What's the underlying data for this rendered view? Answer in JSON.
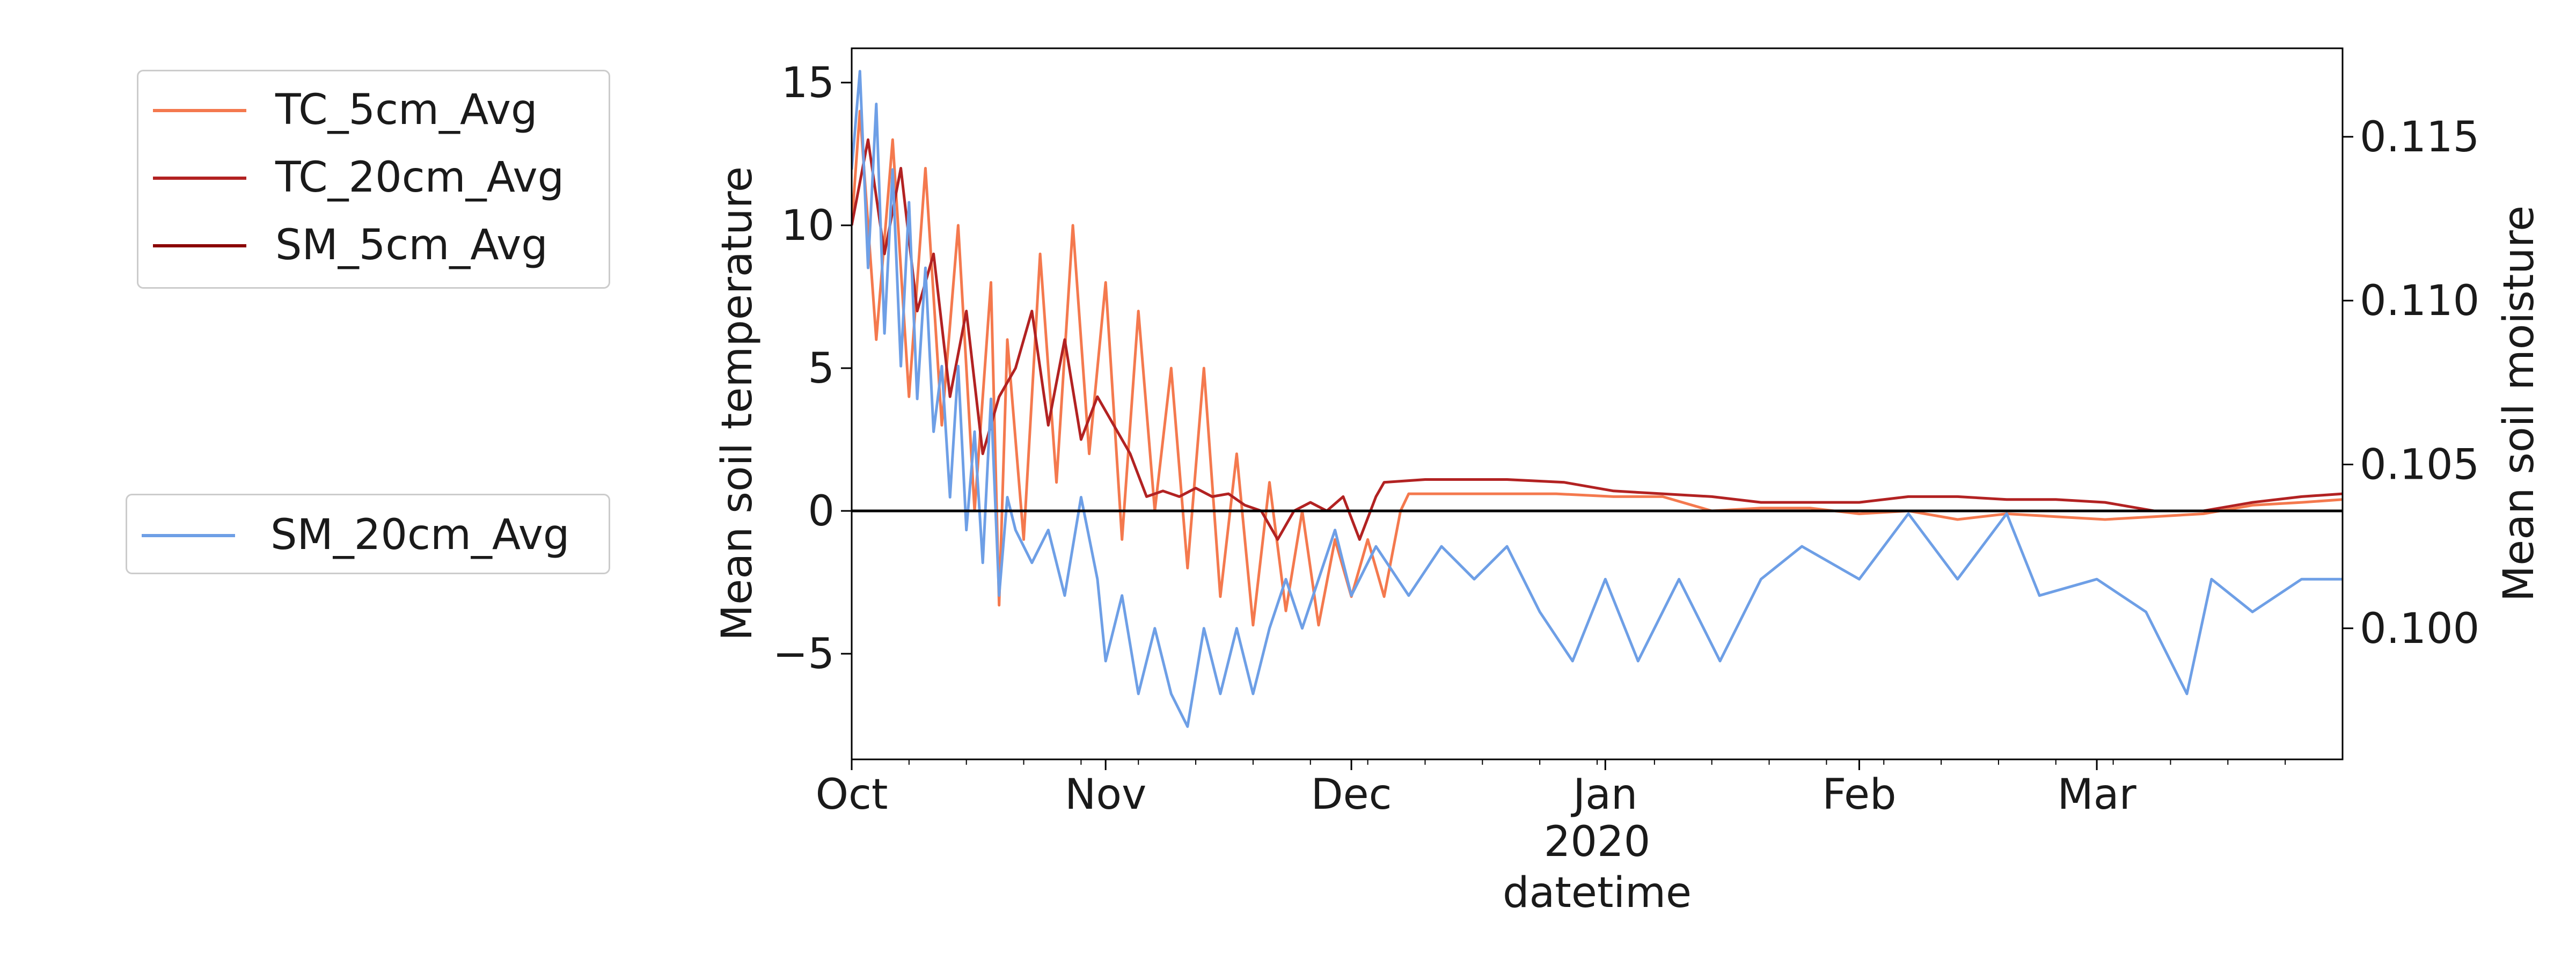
{
  "chart_data": {
    "type": "line",
    "x_axis": {
      "label": "datetime",
      "year_label": "2020",
      "range": [
        "2019-10-01",
        "2020-03-31"
      ],
      "ticks": [
        {
          "date": "2019-10-01",
          "label": "Oct"
        },
        {
          "date": "2019-11-01",
          "label": "Nov"
        },
        {
          "date": "2019-12-01",
          "label": "Dec"
        },
        {
          "date": "2020-01-01",
          "label": "Jan"
        },
        {
          "date": "2020-02-01",
          "label": "Feb"
        },
        {
          "date": "2020-03-01",
          "label": "Mar"
        }
      ]
    },
    "y_left": {
      "label": "Mean soil temperature",
      "range": [
        -8.7,
        16.2
      ],
      "ticks": [
        15,
        10,
        5,
        0,
        -5
      ],
      "tick_labels": [
        "15",
        "10",
        "5",
        "0",
        "−5"
      ]
    },
    "y_right": {
      "label": "Mean soil moisture",
      "range": [
        0.096,
        0.1177
      ],
      "ticks": [
        0.115,
        0.11,
        0.105,
        0.1
      ],
      "tick_labels": [
        "0.115",
        "0.110",
        "0.105",
        "0.100"
      ]
    },
    "reference_line": {
      "axis": "left",
      "y": 0,
      "color": "#000000"
    },
    "legend_left_top": [
      "TC_5cm_Avg",
      "TC_20cm_Avg",
      "SM_5cm_Avg"
    ],
    "legend_left_bottom": [
      "SM_20cm_Avg"
    ],
    "series": [
      {
        "name": "TC_5cm_Avg",
        "axis": "left",
        "color": "#f4794e",
        "points": [
          [
            "2019-10-01",
            10
          ],
          [
            "2019-10-02",
            14
          ],
          [
            "2019-10-04",
            6
          ],
          [
            "2019-10-06",
            13
          ],
          [
            "2019-10-08",
            4
          ],
          [
            "2019-10-10",
            12
          ],
          [
            "2019-10-12",
            3
          ],
          [
            "2019-10-14",
            10
          ],
          [
            "2019-10-16",
            0
          ],
          [
            "2019-10-18",
            8
          ],
          [
            "2019-10-19",
            -3.3
          ],
          [
            "2019-10-20",
            6
          ],
          [
            "2019-10-22",
            -1
          ],
          [
            "2019-10-24",
            9
          ],
          [
            "2019-10-26",
            1
          ],
          [
            "2019-10-28",
            10
          ],
          [
            "2019-10-30",
            2
          ],
          [
            "2019-11-01",
            8
          ],
          [
            "2019-11-03",
            -1
          ],
          [
            "2019-11-05",
            7
          ],
          [
            "2019-11-07",
            0
          ],
          [
            "2019-11-09",
            5
          ],
          [
            "2019-11-11",
            -2
          ],
          [
            "2019-11-13",
            5
          ],
          [
            "2019-11-15",
            -3
          ],
          [
            "2019-11-17",
            2
          ],
          [
            "2019-11-19",
            -4
          ],
          [
            "2019-11-21",
            1
          ],
          [
            "2019-11-23",
            -3.5
          ],
          [
            "2019-11-25",
            0
          ],
          [
            "2019-11-27",
            -4
          ],
          [
            "2019-11-29",
            -1
          ],
          [
            "2019-12-01",
            -3
          ],
          [
            "2019-12-03",
            -1
          ],
          [
            "2019-12-05",
            -3
          ],
          [
            "2019-12-07",
            0
          ],
          [
            "2019-12-08",
            0.6
          ],
          [
            "2019-12-15",
            0.6
          ],
          [
            "2019-12-20",
            0.6
          ],
          [
            "2019-12-26",
            0.6
          ],
          [
            "2020-01-02",
            0.5
          ],
          [
            "2020-01-08",
            0.5
          ],
          [
            "2020-01-14",
            0
          ],
          [
            "2020-01-20",
            0.1
          ],
          [
            "2020-01-26",
            0.1
          ],
          [
            "2020-02-01",
            -0.1
          ],
          [
            "2020-02-07",
            0
          ],
          [
            "2020-02-13",
            -0.3
          ],
          [
            "2020-02-19",
            -0.1
          ],
          [
            "2020-02-25",
            -0.2
          ],
          [
            "2020-03-02",
            -0.3
          ],
          [
            "2020-03-08",
            -0.2
          ],
          [
            "2020-03-14",
            -0.1
          ],
          [
            "2020-03-20",
            0.2
          ],
          [
            "2020-03-26",
            0.3
          ],
          [
            "2020-03-31",
            0.4
          ]
        ]
      },
      {
        "name": "TC_20cm_Avg",
        "axis": "left",
        "color": "#b22222",
        "points": [
          [
            "2019-10-01",
            10
          ],
          [
            "2019-10-03",
            13
          ],
          [
            "2019-10-05",
            9
          ],
          [
            "2019-10-07",
            12
          ],
          [
            "2019-10-09",
            7
          ],
          [
            "2019-10-11",
            9
          ],
          [
            "2019-10-13",
            4
          ],
          [
            "2019-10-15",
            7
          ],
          [
            "2019-10-17",
            2
          ],
          [
            "2019-10-19",
            4
          ],
          [
            "2019-10-21",
            5
          ],
          [
            "2019-10-23",
            7
          ],
          [
            "2019-10-25",
            3
          ],
          [
            "2019-10-27",
            6
          ],
          [
            "2019-10-29",
            2.5
          ],
          [
            "2019-10-31",
            4
          ],
          [
            "2019-11-02",
            3
          ],
          [
            "2019-11-04",
            2
          ],
          [
            "2019-11-06",
            0.5
          ],
          [
            "2019-11-08",
            0.7
          ],
          [
            "2019-11-10",
            0.5
          ],
          [
            "2019-11-12",
            0.8
          ],
          [
            "2019-11-14",
            0.5
          ],
          [
            "2019-11-16",
            0.6
          ],
          [
            "2019-11-18",
            0.2
          ],
          [
            "2019-11-20",
            0
          ],
          [
            "2019-11-22",
            -1
          ],
          [
            "2019-11-24",
            0
          ],
          [
            "2019-11-26",
            0.3
          ],
          [
            "2019-11-28",
            0
          ],
          [
            "2019-11-30",
            0.5
          ],
          [
            "2019-12-02",
            -1
          ],
          [
            "2019-12-04",
            0.5
          ],
          [
            "2019-12-05",
            1
          ],
          [
            "2019-12-10",
            1.1
          ],
          [
            "2019-12-15",
            1.1
          ],
          [
            "2019-12-20",
            1.1
          ],
          [
            "2019-12-27",
            1
          ],
          [
            "2020-01-02",
            0.7
          ],
          [
            "2020-01-08",
            0.6
          ],
          [
            "2020-01-14",
            0.5
          ],
          [
            "2020-01-20",
            0.3
          ],
          [
            "2020-01-26",
            0.3
          ],
          [
            "2020-02-01",
            0.3
          ],
          [
            "2020-02-07",
            0.5
          ],
          [
            "2020-02-13",
            0.5
          ],
          [
            "2020-02-19",
            0.4
          ],
          [
            "2020-02-25",
            0.4
          ],
          [
            "2020-03-02",
            0.3
          ],
          [
            "2020-03-08",
            0
          ],
          [
            "2020-03-14",
            0
          ],
          [
            "2020-03-20",
            0.3
          ],
          [
            "2020-03-26",
            0.5
          ],
          [
            "2020-03-31",
            0.6
          ]
        ]
      },
      {
        "name": "SM_5cm_Avg",
        "axis": "left",
        "color": "#8b0000",
        "points": [
          [
            "2019-10-01",
            0
          ],
          [
            "2020-03-31",
            0
          ]
        ]
      },
      {
        "name": "SM_20cm_Avg",
        "axis": "right",
        "color": "#6e9fe6",
        "points": [
          [
            "2019-10-01",
            0.114
          ],
          [
            "2019-10-02",
            0.117
          ],
          [
            "2019-10-03",
            0.111
          ],
          [
            "2019-10-04",
            0.116
          ],
          [
            "2019-10-05",
            0.109
          ],
          [
            "2019-10-06",
            0.114
          ],
          [
            "2019-10-07",
            0.108
          ],
          [
            "2019-10-08",
            0.113
          ],
          [
            "2019-10-09",
            0.107
          ],
          [
            "2019-10-10",
            0.111
          ],
          [
            "2019-10-11",
            0.106
          ],
          [
            "2019-10-12",
            0.108
          ],
          [
            "2019-10-13",
            0.104
          ],
          [
            "2019-10-14",
            0.108
          ],
          [
            "2019-10-15",
            0.103
          ],
          [
            "2019-10-16",
            0.106
          ],
          [
            "2019-10-17",
            0.102
          ],
          [
            "2019-10-18",
            0.107
          ],
          [
            "2019-10-19",
            0.101
          ],
          [
            "2019-10-20",
            0.104
          ],
          [
            "2019-10-21",
            0.103
          ],
          [
            "2019-10-23",
            0.102
          ],
          [
            "2019-10-25",
            0.103
          ],
          [
            "2019-10-27",
            0.101
          ],
          [
            "2019-10-29",
            0.104
          ],
          [
            "2019-10-31",
            0.1015
          ],
          [
            "2019-11-01",
            0.099
          ],
          [
            "2019-11-03",
            0.101
          ],
          [
            "2019-11-05",
            0.098
          ],
          [
            "2019-11-07",
            0.1
          ],
          [
            "2019-11-09",
            0.098
          ],
          [
            "2019-11-11",
            0.097
          ],
          [
            "2019-11-13",
            0.1
          ],
          [
            "2019-11-15",
            0.098
          ],
          [
            "2019-11-17",
            0.1
          ],
          [
            "2019-11-19",
            0.098
          ],
          [
            "2019-11-21",
            0.1
          ],
          [
            "2019-11-23",
            0.1015
          ],
          [
            "2019-11-25",
            0.1
          ],
          [
            "2019-11-27",
            0.1015
          ],
          [
            "2019-11-29",
            0.103
          ],
          [
            "2019-12-01",
            0.101
          ],
          [
            "2019-12-04",
            0.1025
          ],
          [
            "2019-12-08",
            0.101
          ],
          [
            "2019-12-12",
            0.1025
          ],
          [
            "2019-12-16",
            0.1015
          ],
          [
            "2019-12-20",
            0.1025
          ],
          [
            "2019-12-24",
            0.1005
          ],
          [
            "2019-12-28",
            0.099
          ],
          [
            "2020-01-01",
            0.1015
          ],
          [
            "2020-01-05",
            0.099
          ],
          [
            "2020-01-10",
            0.1015
          ],
          [
            "2020-01-15",
            0.099
          ],
          [
            "2020-01-20",
            0.1015
          ],
          [
            "2020-01-25",
            0.1025
          ],
          [
            "2020-02-01",
            0.1015
          ],
          [
            "2020-02-07",
            0.1035
          ],
          [
            "2020-02-13",
            0.1015
          ],
          [
            "2020-02-19",
            0.1035
          ],
          [
            "2020-02-23",
            0.101
          ],
          [
            "2020-03-01",
            0.1015
          ],
          [
            "2020-03-07",
            0.1005
          ],
          [
            "2020-03-12",
            0.098
          ],
          [
            "2020-03-15",
            0.1015
          ],
          [
            "2020-03-20",
            0.1005
          ],
          [
            "2020-03-26",
            0.1015
          ],
          [
            "2020-03-31",
            0.1015
          ]
        ]
      }
    ]
  }
}
